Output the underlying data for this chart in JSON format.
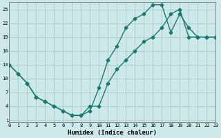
{
  "xlabel": "Humidex (Indice chaleur)",
  "background_color": "#cce8e8",
  "grid_color": "#aacfcf",
  "line_color": "#1a7a6e",
  "line1_x": [
    0,
    1,
    2,
    3,
    4,
    5,
    6,
    7,
    8,
    9,
    10,
    11,
    12,
    13,
    14,
    15,
    16,
    17,
    18,
    19,
    20,
    21,
    22,
    23
  ],
  "line1_y": [
    13,
    11,
    9,
    6,
    5,
    4,
    3,
    2,
    2,
    3,
    8,
    14,
    17,
    21,
    23,
    24,
    26,
    26,
    20,
    24,
    21,
    19,
    19,
    19
  ],
  "line2_x": [
    0,
    1,
    2,
    3,
    4,
    5,
    6,
    7,
    8,
    9,
    10,
    11,
    12,
    13,
    14,
    15,
    16,
    17,
    18,
    19,
    20,
    21,
    22,
    23
  ],
  "line2_y": [
    13,
    11,
    9,
    6,
    5,
    4,
    3,
    2,
    2,
    4,
    4,
    9,
    12,
    14,
    16,
    18,
    19,
    21,
    24,
    25,
    19,
    19,
    19,
    19
  ],
  "xlim": [
    0,
    23
  ],
  "ylim": [
    0.5,
    26.5
  ],
  "xticks": [
    0,
    1,
    2,
    3,
    4,
    5,
    6,
    7,
    8,
    9,
    10,
    11,
    12,
    13,
    14,
    15,
    16,
    17,
    18,
    19,
    20,
    21,
    22,
    23
  ],
  "yticks": [
    1,
    4,
    7,
    10,
    13,
    16,
    19,
    22,
    25
  ],
  "marker": "D",
  "markersize": 2.5,
  "linewidth": 1.0
}
